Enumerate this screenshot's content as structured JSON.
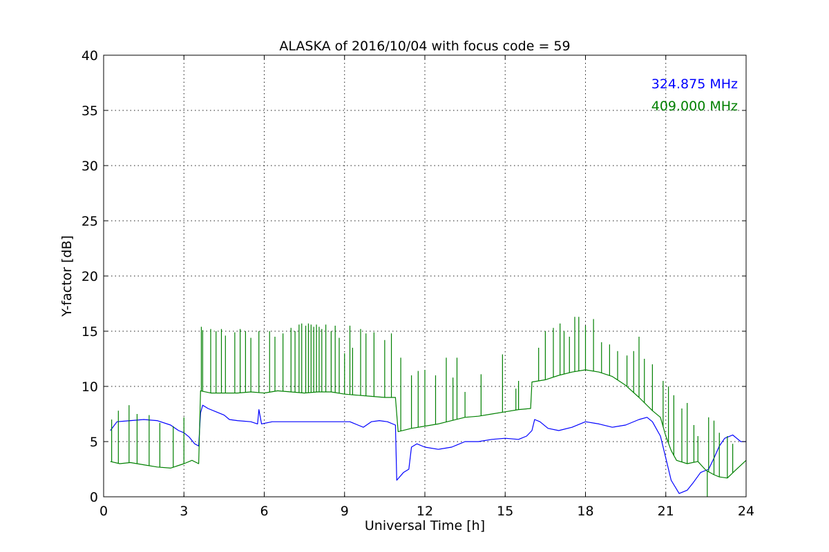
{
  "chart_data": {
    "type": "line",
    "title": "ALASKA of 2016/10/04 with focus code = 59",
    "xlabel": "Universal Time [h]",
    "ylabel": "Y-factor [dB]",
    "xlim": [
      0,
      24
    ],
    "ylim": [
      0,
      40
    ],
    "xticks": [
      0,
      3,
      6,
      9,
      12,
      15,
      18,
      21,
      24
    ],
    "yticks": [
      0,
      5,
      10,
      15,
      20,
      25,
      30,
      35,
      40
    ],
    "grid": true,
    "legend_position": "top-right",
    "series": [
      {
        "name": "324.875 MHz",
        "color": "#0000ff",
        "points": [
          [
            0.25,
            6.0
          ],
          [
            0.5,
            6.8
          ],
          [
            1.0,
            6.9
          ],
          [
            1.5,
            7.0
          ],
          [
            2.0,
            6.9
          ],
          [
            2.5,
            6.5
          ],
          [
            2.8,
            6.0
          ],
          [
            3.0,
            5.8
          ],
          [
            3.2,
            5.4
          ],
          [
            3.4,
            4.8
          ],
          [
            3.55,
            4.6
          ],
          [
            3.62,
            7.6
          ],
          [
            3.7,
            8.3
          ],
          [
            3.9,
            8.0
          ],
          [
            4.2,
            7.7
          ],
          [
            4.5,
            7.4
          ],
          [
            4.7,
            7.0
          ],
          [
            5.0,
            6.9
          ],
          [
            5.5,
            6.8
          ],
          [
            5.75,
            6.6
          ],
          [
            5.8,
            7.9
          ],
          [
            5.9,
            6.6
          ],
          [
            6.3,
            6.8
          ],
          [
            7.0,
            6.8
          ],
          [
            8.0,
            6.8
          ],
          [
            8.8,
            6.8
          ],
          [
            9.2,
            6.8
          ],
          [
            9.5,
            6.5
          ],
          [
            9.7,
            6.3
          ],
          [
            10.0,
            6.8
          ],
          [
            10.3,
            6.9
          ],
          [
            10.6,
            6.8
          ],
          [
            10.9,
            6.5
          ],
          [
            10.95,
            1.5
          ],
          [
            11.2,
            2.2
          ],
          [
            11.4,
            2.5
          ],
          [
            11.5,
            4.5
          ],
          [
            11.7,
            4.8
          ],
          [
            12.0,
            4.5
          ],
          [
            12.5,
            4.3
          ],
          [
            13.0,
            4.5
          ],
          [
            13.2,
            4.7
          ],
          [
            13.5,
            5.0
          ],
          [
            14.0,
            5.0
          ],
          [
            14.5,
            5.2
          ],
          [
            15.0,
            5.3
          ],
          [
            15.5,
            5.2
          ],
          [
            15.8,
            5.5
          ],
          [
            16.0,
            6.0
          ],
          [
            16.1,
            7.0
          ],
          [
            16.3,
            6.8
          ],
          [
            16.6,
            6.2
          ],
          [
            17.0,
            6.0
          ],
          [
            17.5,
            6.3
          ],
          [
            18.0,
            6.8
          ],
          [
            18.5,
            6.6
          ],
          [
            19.0,
            6.3
          ],
          [
            19.5,
            6.5
          ],
          [
            20.0,
            7.0
          ],
          [
            20.3,
            7.2
          ],
          [
            20.5,
            6.8
          ],
          [
            20.8,
            5.5
          ],
          [
            21.0,
            3.5
          ],
          [
            21.2,
            1.5
          ],
          [
            21.5,
            0.3
          ],
          [
            21.8,
            0.6
          ],
          [
            22.0,
            1.2
          ],
          [
            22.3,
            2.2
          ],
          [
            22.6,
            2.5
          ],
          [
            22.8,
            3.5
          ],
          [
            23.0,
            4.6
          ],
          [
            23.2,
            5.3
          ],
          [
            23.5,
            5.6
          ],
          [
            23.8,
            5.0
          ],
          [
            24.0,
            5.0
          ]
        ]
      },
      {
        "name": "409.000 MHz",
        "color": "#008000",
        "points": [
          [
            0.25,
            3.2
          ],
          [
            0.6,
            3.0
          ],
          [
            1.0,
            3.1
          ],
          [
            1.5,
            2.9
          ],
          [
            2.0,
            2.7
          ],
          [
            2.5,
            2.6
          ],
          [
            3.0,
            3.0
          ],
          [
            3.3,
            3.3
          ],
          [
            3.55,
            3.0
          ],
          [
            3.62,
            9.6
          ],
          [
            4.0,
            9.4
          ],
          [
            4.5,
            9.4
          ],
          [
            5.0,
            9.4
          ],
          [
            5.5,
            9.5
          ],
          [
            6.0,
            9.4
          ],
          [
            6.5,
            9.6
          ],
          [
            7.0,
            9.5
          ],
          [
            7.5,
            9.4
          ],
          [
            8.0,
            9.5
          ],
          [
            8.5,
            9.5
          ],
          [
            9.0,
            9.3
          ],
          [
            9.5,
            9.2
          ],
          [
            10.0,
            9.1
          ],
          [
            10.5,
            9.0
          ],
          [
            10.9,
            9.0
          ],
          [
            11.0,
            5.9
          ],
          [
            11.5,
            6.2
          ],
          [
            12.0,
            6.4
          ],
          [
            12.5,
            6.6
          ],
          [
            13.0,
            6.9
          ],
          [
            13.5,
            7.2
          ],
          [
            14.0,
            7.3
          ],
          [
            14.5,
            7.5
          ],
          [
            15.0,
            7.7
          ],
          [
            15.5,
            7.9
          ],
          [
            15.95,
            8.0
          ],
          [
            16.0,
            10.4
          ],
          [
            16.5,
            10.6
          ],
          [
            17.0,
            11.0
          ],
          [
            17.5,
            11.3
          ],
          [
            18.0,
            11.5
          ],
          [
            18.5,
            11.3
          ],
          [
            19.0,
            10.9
          ],
          [
            19.5,
            10.1
          ],
          [
            20.0,
            9.0
          ],
          [
            20.5,
            7.8
          ],
          [
            20.8,
            7.2
          ],
          [
            21.0,
            5.5
          ],
          [
            21.2,
            4.2
          ],
          [
            21.4,
            3.3
          ],
          [
            21.8,
            3.0
          ],
          [
            22.2,
            3.2
          ],
          [
            22.5,
            2.4
          ],
          [
            22.8,
            2.0
          ],
          [
            23.0,
            1.8
          ],
          [
            23.3,
            1.7
          ],
          [
            23.6,
            2.4
          ],
          [
            24.0,
            3.3
          ]
        ],
        "spikes": [
          [
            0.3,
            7.0
          ],
          [
            0.55,
            7.8
          ],
          [
            0.95,
            8.3
          ],
          [
            1.25,
            7.5
          ],
          [
            1.7,
            7.4
          ],
          [
            2.1,
            6.7
          ],
          [
            2.6,
            6.4
          ],
          [
            3.0,
            7.2
          ],
          [
            3.65,
            15.4
          ],
          [
            3.7,
            15.1
          ],
          [
            4.0,
            15.2
          ],
          [
            4.2,
            15.0
          ],
          [
            4.4,
            15.2
          ],
          [
            4.55,
            14.6
          ],
          [
            4.9,
            14.9
          ],
          [
            5.1,
            15.2
          ],
          [
            5.3,
            15.0
          ],
          [
            5.5,
            14.4
          ],
          [
            5.8,
            15.0
          ],
          [
            6.2,
            15.0
          ],
          [
            6.4,
            14.5
          ],
          [
            6.7,
            14.8
          ],
          [
            7.0,
            15.3
          ],
          [
            7.15,
            15.0
          ],
          [
            7.3,
            15.6
          ],
          [
            7.4,
            15.7
          ],
          [
            7.55,
            15.5
          ],
          [
            7.65,
            15.7
          ],
          [
            7.75,
            15.6
          ],
          [
            7.85,
            15.4
          ],
          [
            7.95,
            15.6
          ],
          [
            8.05,
            15.4
          ],
          [
            8.15,
            15.2
          ],
          [
            8.3,
            15.6
          ],
          [
            8.5,
            15.0
          ],
          [
            8.65,
            15.5
          ],
          [
            8.8,
            14.4
          ],
          [
            9.0,
            13.0
          ],
          [
            9.2,
            15.5
          ],
          [
            9.3,
            13.5
          ],
          [
            9.6,
            15.2
          ],
          [
            9.8,
            14.8
          ],
          [
            10.1,
            14.9
          ],
          [
            10.5,
            14.2
          ],
          [
            10.75,
            14.8
          ],
          [
            11.1,
            12.6
          ],
          [
            11.5,
            11.0
          ],
          [
            11.75,
            11.4
          ],
          [
            12.0,
            11.5
          ],
          [
            12.4,
            11.0
          ],
          [
            12.8,
            12.6
          ],
          [
            13.05,
            10.8
          ],
          [
            13.2,
            12.6
          ],
          [
            13.5,
            9.5
          ],
          [
            14.1,
            11.1
          ],
          [
            14.9,
            12.9
          ],
          [
            15.4,
            9.8
          ],
          [
            15.5,
            10.5
          ],
          [
            16.25,
            13.5
          ],
          [
            16.5,
            15.0
          ],
          [
            16.8,
            15.3
          ],
          [
            17.05,
            15.7
          ],
          [
            17.2,
            15.0
          ],
          [
            17.4,
            14.5
          ],
          [
            17.6,
            16.3
          ],
          [
            17.75,
            16.3
          ],
          [
            18.0,
            15.5
          ],
          [
            18.3,
            16.1
          ],
          [
            18.6,
            14.0
          ],
          [
            18.9,
            13.8
          ],
          [
            19.2,
            13.2
          ],
          [
            19.55,
            12.8
          ],
          [
            19.8,
            13.2
          ],
          [
            20.0,
            14.5
          ],
          [
            20.2,
            12.5
          ],
          [
            20.5,
            12.0
          ],
          [
            20.9,
            10.5
          ],
          [
            21.1,
            10.0
          ],
          [
            21.3,
            9.2
          ],
          [
            21.6,
            8.0
          ],
          [
            21.8,
            8.5
          ],
          [
            22.05,
            6.5
          ],
          [
            22.2,
            5.5
          ],
          [
            22.6,
            7.2
          ],
          [
            22.8,
            6.9
          ],
          [
            23.0,
            5.8
          ],
          [
            23.3,
            5.5
          ],
          [
            23.5,
            4.8
          ],
          [
            22.55,
            0.0
          ]
        ]
      }
    ]
  }
}
